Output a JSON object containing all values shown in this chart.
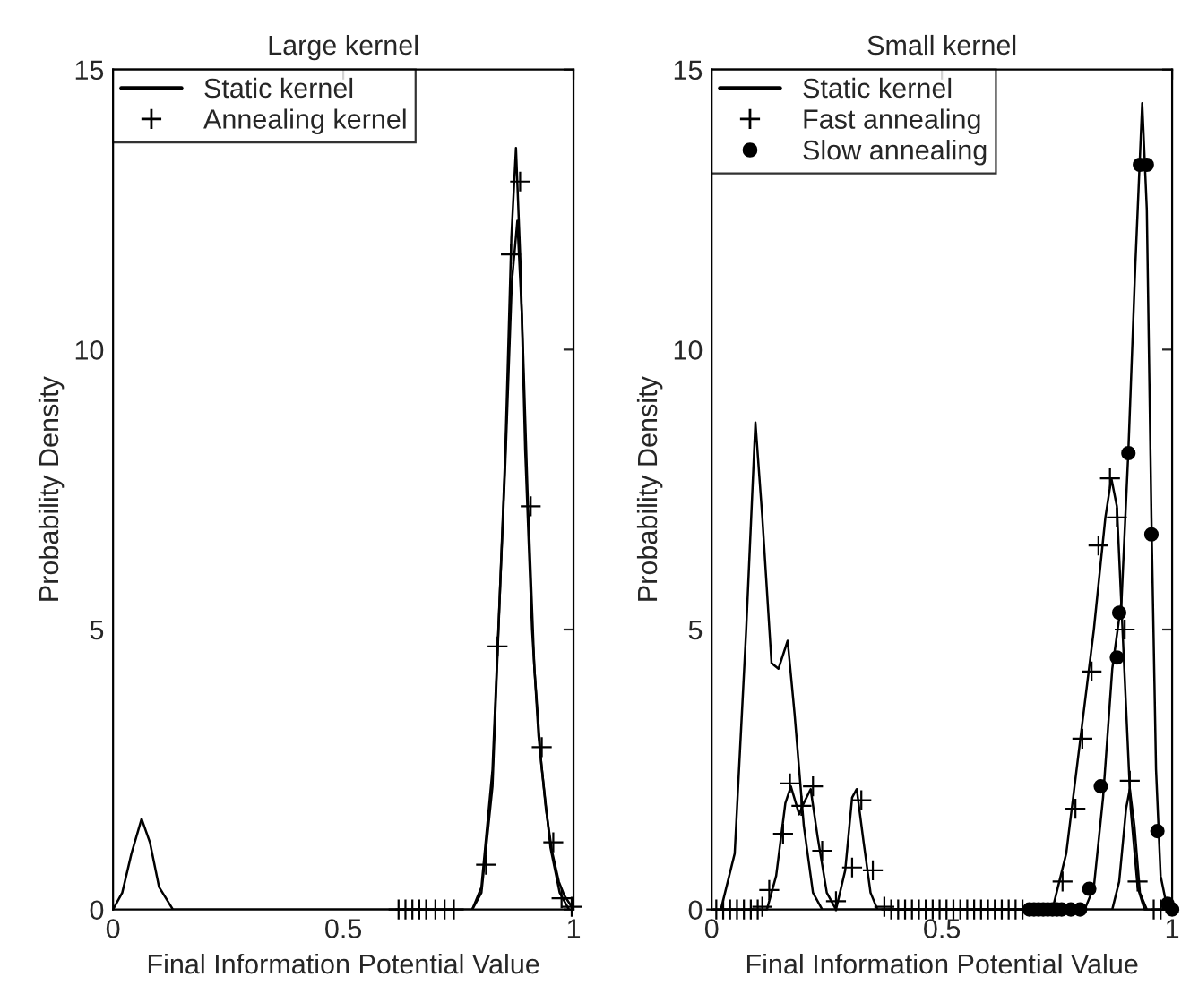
{
  "chart_data": [
    {
      "type": "line",
      "title": "Large kernel",
      "xlabel": "Final Information Potential Value",
      "ylabel": "Probability Density",
      "xlim": [
        0,
        1
      ],
      "ylim": [
        0,
        15
      ],
      "xticks": [
        0,
        0.5,
        1
      ],
      "yticks": [
        0,
        5,
        10,
        15
      ],
      "legend": "top left",
      "grid": false,
      "series": [
        {
          "name": "Static kernel",
          "color": "#000000",
          "marker": "none",
          "x": [
            0,
            0.02,
            0.04,
            0.062,
            0.08,
            0.1,
            0.13,
            0.2,
            0.5,
            0.78,
            0.8,
            0.824,
            0.852,
            0.865,
            0.875,
            0.885,
            0.895,
            0.91,
            0.924,
            0.94,
            0.953,
            0.968,
            0.98,
            1.0
          ],
          "values": [
            0,
            0.3,
            1.0,
            1.62,
            1.2,
            0.4,
            0,
            0,
            0,
            0,
            0.3,
            2.2,
            8.2,
            12.0,
            13.6,
            11.5,
            8.2,
            5.0,
            3.1,
            1.8,
            1.05,
            0.5,
            0.25,
            0
          ]
        },
        {
          "color": "#000000",
          "marker": "none",
          "x": [
            0.78,
            0.8,
            0.824,
            0.852,
            0.866,
            0.878,
            0.888,
            0.9,
            0.915,
            0.93,
            0.95,
            0.97,
            0.99
          ],
          "values": [
            0,
            0.4,
            2.5,
            8.0,
            11.2,
            12.3,
            10.6,
            7.5,
            4.3,
            2.6,
            1.1,
            0.3,
            0
          ]
        },
        {
          "name": "Annealing kernel",
          "type": "scatter",
          "color": "#000000",
          "marker": "cross",
          "x": [
            0.62,
            0.635,
            0.65,
            0.665,
            0.68,
            0.7,
            0.72,
            0.74,
            0.81,
            0.835,
            0.864,
            0.884,
            0.907,
            0.931,
            0.956,
            0.974,
            0.996
          ],
          "values": [
            0,
            0,
            0,
            0,
            0,
            0,
            0,
            0,
            0.8,
            4.7,
            11.7,
            13.0,
            7.2,
            2.9,
            1.2,
            0.2,
            0.05
          ]
        }
      ]
    },
    {
      "type": "line",
      "title": "Small kernel",
      "xlabel": "Final Information Potential Value",
      "ylabel": "Probability Density",
      "xlim": [
        0,
        1
      ],
      "ylim": [
        0,
        15
      ],
      "xticks": [
        0,
        0.5,
        1
      ],
      "yticks": [
        0,
        5,
        10,
        15
      ],
      "legend": "top left",
      "grid": false,
      "series": [
        {
          "name": "Static kernel",
          "color": "#000000",
          "marker": "none",
          "x": [
            0.02,
            0.05,
            0.075,
            0.095,
            0.11,
            0.13,
            0.145,
            0.165,
            0.18,
            0.2,
            0.22,
            0.24,
            0.74,
            0.77,
            0.8,
            0.83,
            0.855,
            0.868,
            0.88,
            0.895,
            0.91,
            0.925,
            0.94
          ],
          "values": [
            0,
            1.0,
            5.0,
            8.7,
            7.0,
            4.4,
            4.3,
            4.8,
            3.5,
            1.5,
            0.3,
            0,
            0,
            1.0,
            3.0,
            5.0,
            7.0,
            7.7,
            7.2,
            4.5,
            1.8,
            0.4,
            0
          ]
        },
        {
          "color": "#000000",
          "marker": "none",
          "x": [
            0.12,
            0.14,
            0.16,
            0.172,
            0.19,
            0.2,
            0.215,
            0.23,
            0.25,
            0.27,
            0.29,
            0.305,
            0.315,
            0.33,
            0.345,
            0.36,
            0.87,
            0.885,
            0.9,
            0.908,
            0.918,
            0.93,
            0.945
          ],
          "values": [
            0,
            0.6,
            1.9,
            2.2,
            1.7,
            1.9,
            2.15,
            1.3,
            0.3,
            0,
            0.7,
            2.0,
            2.15,
            1.2,
            0.3,
            0,
            0,
            0.5,
            1.8,
            2.15,
            1.5,
            0.3,
            0
          ]
        },
        {
          "color": "#000000",
          "marker": "none",
          "x": [
            0.81,
            0.83,
            0.85,
            0.87,
            0.89,
            0.905,
            0.92,
            0.935,
            0.945,
            0.955,
            0.965,
            0.975,
            0.99
          ],
          "values": [
            0,
            0.4,
            2.0,
            4.3,
            5.5,
            8.2,
            11.5,
            14.4,
            12.5,
            7.0,
            2.5,
            0.6,
            0
          ]
        },
        {
          "name": "Fast annealing",
          "type": "scatter",
          "color": "#000000",
          "marker": "cross",
          "x": [
            0.01,
            0.025,
            0.04,
            0.055,
            0.07,
            0.085,
            0.1,
            0.11,
            0.125,
            0.155,
            0.17,
            0.195,
            0.22,
            0.24,
            0.27,
            0.305,
            0.325,
            0.35,
            0.375,
            0.39,
            0.405,
            0.42,
            0.435,
            0.45,
            0.465,
            0.48,
            0.495,
            0.51,
            0.525,
            0.54,
            0.555,
            0.57,
            0.585,
            0.6,
            0.615,
            0.63,
            0.645,
            0.66,
            0.675,
            0.762,
            0.79,
            0.805,
            0.825,
            0.84,
            0.865,
            0.88,
            0.897,
            0.908,
            0.925,
            0.96,
            0.975
          ],
          "values": [
            0,
            0,
            0,
            0,
            0,
            0,
            0,
            0.05,
            0.35,
            1.35,
            2.25,
            1.85,
            2.2,
            1.05,
            0.15,
            0.75,
            1.95,
            0.7,
            0.05,
            0,
            0,
            0,
            0,
            0,
            0,
            0,
            0,
            0,
            0,
            0,
            0,
            0,
            0,
            0,
            0,
            0,
            0,
            0,
            0,
            0.5,
            1.8,
            3.05,
            4.25,
            6.5,
            7.7,
            7.0,
            5.0,
            2.3,
            0.5,
            0,
            0
          ]
        },
        {
          "name": "Slow annealing",
          "type": "scatter",
          "color": "#000000",
          "marker": "circle",
          "x": [
            0.69,
            0.7,
            0.71,
            0.72,
            0.73,
            0.74,
            0.75,
            0.76,
            0.78,
            0.8,
            0.82,
            0.845,
            0.88,
            0.885,
            0.905,
            0.93,
            0.945,
            0.955,
            0.968,
            0.99,
            1.0
          ],
          "values": [
            0,
            0,
            0,
            0,
            0,
            0,
            0,
            0,
            0,
            0,
            0.37,
            2.2,
            4.5,
            5.3,
            8.15,
            13.3,
            13.3,
            6.7,
            1.4,
            0.1,
            0
          ]
        }
      ]
    }
  ]
}
